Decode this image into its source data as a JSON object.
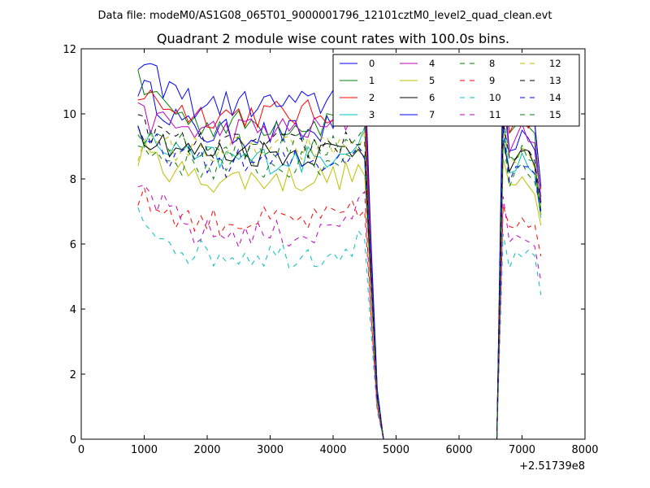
{
  "chart_data": {
    "type": "line",
    "suptitle": "Data file: modeM0/AS1G08_065T01_9000001796_12101cztM0_level2_quad_clean.evt",
    "title": "Quadrant 2 module wise count rates with 100.0s bins.",
    "xlabel": "",
    "ylabel": "",
    "x_offset_label": "+2.51739e8",
    "xlim": [
      0,
      8000
    ],
    "ylim": [
      0,
      12
    ],
    "xticks": [
      0,
      1000,
      2000,
      3000,
      4000,
      5000,
      6000,
      7000,
      8000
    ],
    "yticks": [
      0,
      2,
      4,
      6,
      8,
      10,
      12
    ],
    "xtick_labels": [
      "0",
      "1000",
      "2000",
      "3000",
      "4000",
      "5000",
      "6000",
      "7000",
      "8000"
    ],
    "ytick_labels": [
      "0",
      "2",
      "4",
      "6",
      "8",
      "10",
      "12"
    ],
    "grid": false,
    "legend_position": "top-right",
    "legend_columns": 4,
    "x_start": 900,
    "x_step": 100,
    "active_end": 4900,
    "gap_end": 6600,
    "series": [
      {
        "name": "0",
        "color": "#0000ff",
        "dash": "solid",
        "base": 9.4,
        "start": 10.9,
        "peak": 10.4,
        "end": 7.6
      },
      {
        "name": "1",
        "color": "#008000",
        "dash": "solid",
        "base": 9.7,
        "start": 10.9,
        "peak": 10.3,
        "end": 7.4
      },
      {
        "name": "2",
        "color": "#ff0000",
        "dash": "solid",
        "base": 10.0,
        "start": 10.6,
        "peak": 10.5,
        "end": 7.6
      },
      {
        "name": "3",
        "color": "#00bfbf",
        "dash": "solid",
        "base": 8.6,
        "start": 9.3,
        "peak": 9.4,
        "end": 7.0
      },
      {
        "name": "4",
        "color": "#bf00bf",
        "dash": "solid",
        "base": 9.5,
        "start": 9.9,
        "peak": 10.0,
        "end": 7.2
      },
      {
        "name": "5",
        "color": "#bfbf00",
        "dash": "solid",
        "base": 8.0,
        "start": 8.8,
        "peak": 8.2,
        "end": 6.8
      },
      {
        "name": "6",
        "color": "#000000",
        "dash": "solid",
        "base": 8.8,
        "start": 9.5,
        "peak": 9.0,
        "end": 7.0
      },
      {
        "name": "7",
        "color": "#0000ff",
        "dash": "solid",
        "base": 10.3,
        "start": 11.4,
        "peak": 11.2,
        "end": 7.8
      },
      {
        "name": "8",
        "color": "#008000",
        "dash": "dashed",
        "base": 8.4,
        "start": 8.9,
        "peak": 9.0,
        "end": 7.0
      },
      {
        "name": "9",
        "color": "#ff0000",
        "dash": "dashed",
        "base": 6.7,
        "start": 7.4,
        "peak": 7.0,
        "end": 5.5
      },
      {
        "name": "10",
        "color": "#00bfbf",
        "dash": "dashed",
        "base": 5.7,
        "start": 6.8,
        "peak": 6.1,
        "end": 4.2
      },
      {
        "name": "11",
        "color": "#bf00bf",
        "dash": "dashed",
        "base": 6.3,
        "start": 7.8,
        "peak": 7.2,
        "end": 5.0
      },
      {
        "name": "12",
        "color": "#bfbf00",
        "dash": "dashed",
        "base": 8.9,
        "start": 9.0,
        "peak": 9.2,
        "end": 7.0
      },
      {
        "name": "13",
        "color": "#000000",
        "dash": "dashed",
        "base": 9.0,
        "start": 9.6,
        "peak": 9.3,
        "end": 7.0
      },
      {
        "name": "14",
        "color": "#0000ff",
        "dash": "dashed",
        "base": 8.5,
        "start": 9.2,
        "peak": 9.0,
        "end": 7.2
      },
      {
        "name": "15",
        "color": "#008000",
        "dash": "dashed",
        "base": 9.0,
        "start": 9.6,
        "peak": 9.4,
        "end": 7.2
      }
    ]
  }
}
